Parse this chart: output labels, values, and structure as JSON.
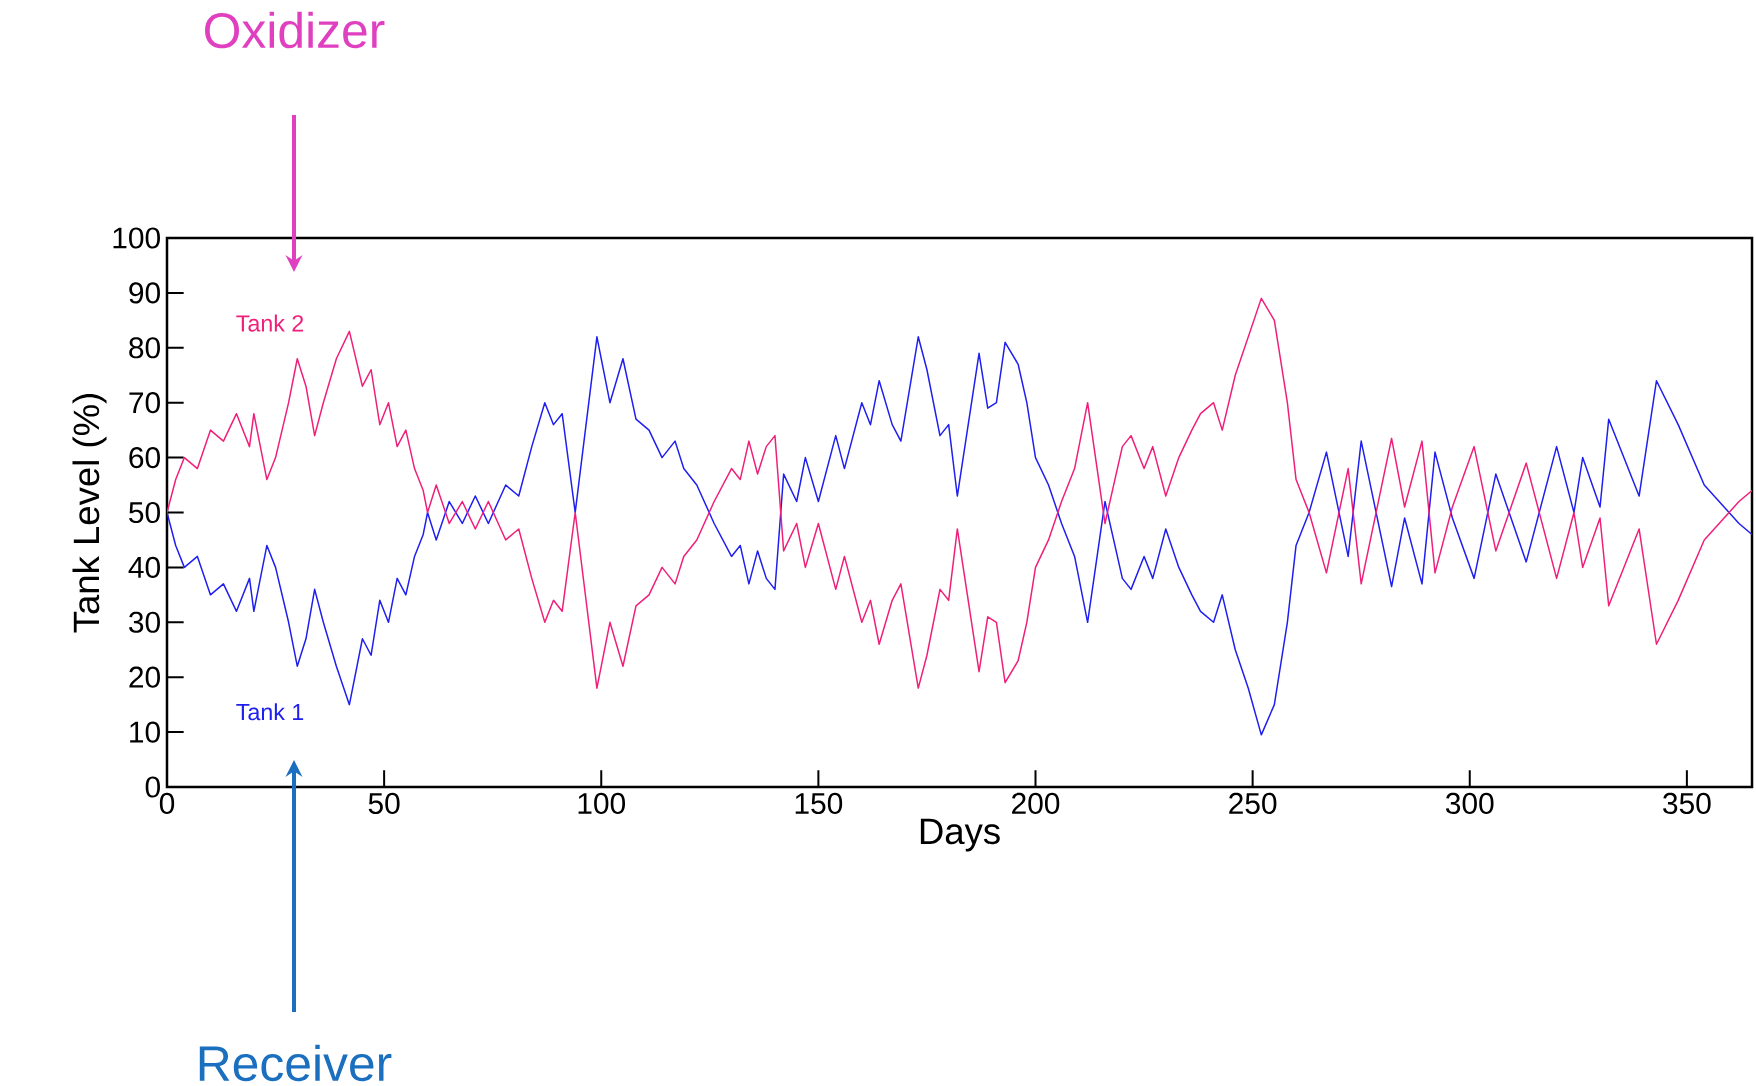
{
  "chart_data": {
    "type": "line",
    "xlabel": "Days",
    "ylabel": "Tank Level (%)",
    "annotations": [
      "Oxidizer",
      "Receiver"
    ],
    "xlim": [
      0,
      365
    ],
    "xticks": [
      0,
      50,
      100,
      150,
      200,
      250,
      300,
      350
    ],
    "ylim": [
      0,
      100
    ],
    "yticks": [
      0,
      10,
      20,
      30,
      40,
      50,
      60,
      70,
      80,
      90,
      100
    ],
    "grid": false,
    "legend": false,
    "series": [
      {
        "name": "Tank 1",
        "color": "#1f1ff0",
        "x": [
          0,
          2,
          4,
          7,
          10,
          13,
          16,
          19,
          20,
          23,
          25,
          28,
          30,
          32,
          34,
          36,
          39,
          42,
          45,
          47,
          49,
          51,
          53,
          55,
          57,
          59,
          60,
          62,
          65,
          68,
          71,
          74,
          78,
          81,
          84,
          87,
          89,
          91,
          94,
          99,
          102,
          105,
          108,
          111,
          114,
          117,
          119,
          122,
          126,
          130,
          132,
          134,
          136,
          138,
          140,
          142,
          145,
          147,
          150,
          154,
          156,
          160,
          162,
          164,
          167,
          169,
          173,
          175,
          178,
          180,
          182,
          187,
          189,
          191,
          193,
          196,
          198,
          200,
          203,
          206,
          209,
          212,
          216,
          220,
          222,
          225,
          227,
          230,
          233,
          236,
          238,
          241,
          243,
          246,
          249,
          252,
          255,
          258,
          260,
          263,
          267,
          272,
          275,
          282,
          285,
          289,
          292,
          296,
          301,
          306,
          313,
          320,
          324,
          326,
          330,
          332,
          339,
          343,
          348,
          354,
          362,
          365
        ],
        "values": [
          50,
          44,
          40,
          42,
          35,
          37,
          32,
          38,
          32,
          44,
          40,
          30,
          22,
          27,
          36,
          30,
          22,
          15,
          27,
          24,
          34,
          30,
          38,
          35,
          42,
          46,
          50,
          45,
          52,
          48,
          53,
          48,
          55,
          53,
          62,
          70,
          66,
          68,
          50,
          82,
          70,
          78,
          67,
          65,
          60,
          63,
          58,
          55,
          48,
          42,
          44,
          37,
          43,
          38,
          36,
          57,
          52,
          60,
          52,
          64,
          58,
          70,
          66,
          74,
          66,
          63,
          82,
          76,
          64,
          66,
          53,
          79,
          69,
          70,
          81,
          77,
          70,
          60,
          55,
          48,
          42,
          30,
          52,
          38,
          36,
          42,
          38,
          47,
          40,
          35,
          32,
          30,
          35,
          25,
          18,
          9.5,
          15,
          30,
          44,
          50,
          61,
          42,
          63,
          36.5,
          49,
          37,
          61,
          49,
          38,
          57,
          41,
          62,
          50,
          60,
          51,
          67,
          53,
          74,
          66,
          55,
          48,
          46
        ]
      },
      {
        "name": "Tank 2",
        "color": "#f0207a",
        "x": [
          0,
          2,
          4,
          7,
          10,
          13,
          16,
          19,
          20,
          23,
          25,
          28,
          30,
          32,
          34,
          36,
          39,
          42,
          45,
          47,
          49,
          51,
          53,
          55,
          57,
          59,
          60,
          62,
          65,
          68,
          71,
          74,
          78,
          81,
          84,
          87,
          89,
          91,
          94,
          99,
          102,
          105,
          108,
          111,
          114,
          117,
          119,
          122,
          126,
          130,
          132,
          134,
          136,
          138,
          140,
          142,
          145,
          147,
          150,
          154,
          156,
          160,
          162,
          164,
          167,
          169,
          173,
          175,
          178,
          180,
          182,
          187,
          189,
          191,
          193,
          196,
          198,
          200,
          203,
          206,
          209,
          212,
          216,
          220,
          222,
          225,
          227,
          230,
          233,
          236,
          238,
          241,
          243,
          246,
          249,
          252,
          255,
          258,
          260,
          263,
          267,
          272,
          275,
          282,
          285,
          289,
          292,
          296,
          301,
          306,
          313,
          320,
          324,
          326,
          330,
          332,
          339,
          343,
          348,
          354,
          362,
          365
        ],
        "values": [
          50,
          56,
          60,
          58,
          65,
          63,
          68,
          62,
          68,
          56,
          60,
          70,
          78,
          73,
          64,
          70,
          78,
          83,
          73,
          76,
          66,
          70,
          62,
          65,
          58,
          54,
          50,
          55,
          48,
          52,
          47,
          52,
          45,
          47,
          38,
          30,
          34,
          32,
          50,
          18,
          30,
          22,
          33,
          35,
          40,
          37,
          42,
          45,
          52,
          58,
          56,
          63,
          57,
          62,
          64,
          43,
          48,
          40,
          48,
          36,
          42,
          30,
          34,
          26,
          34,
          37,
          18,
          24,
          36,
          34,
          47,
          21,
          31,
          30,
          19,
          23,
          30,
          40,
          45,
          52,
          58,
          70,
          48,
          62,
          64,
          58,
          62,
          53,
          60,
          65,
          68,
          70,
          65,
          75,
          82,
          89,
          85,
          70,
          56,
          50,
          39,
          58,
          37,
          63.5,
          51,
          63,
          39,
          51,
          62,
          43,
          59,
          38,
          50,
          40,
          49,
          33,
          47,
          26,
          34,
          45,
          52,
          54
        ]
      }
    ]
  }
}
